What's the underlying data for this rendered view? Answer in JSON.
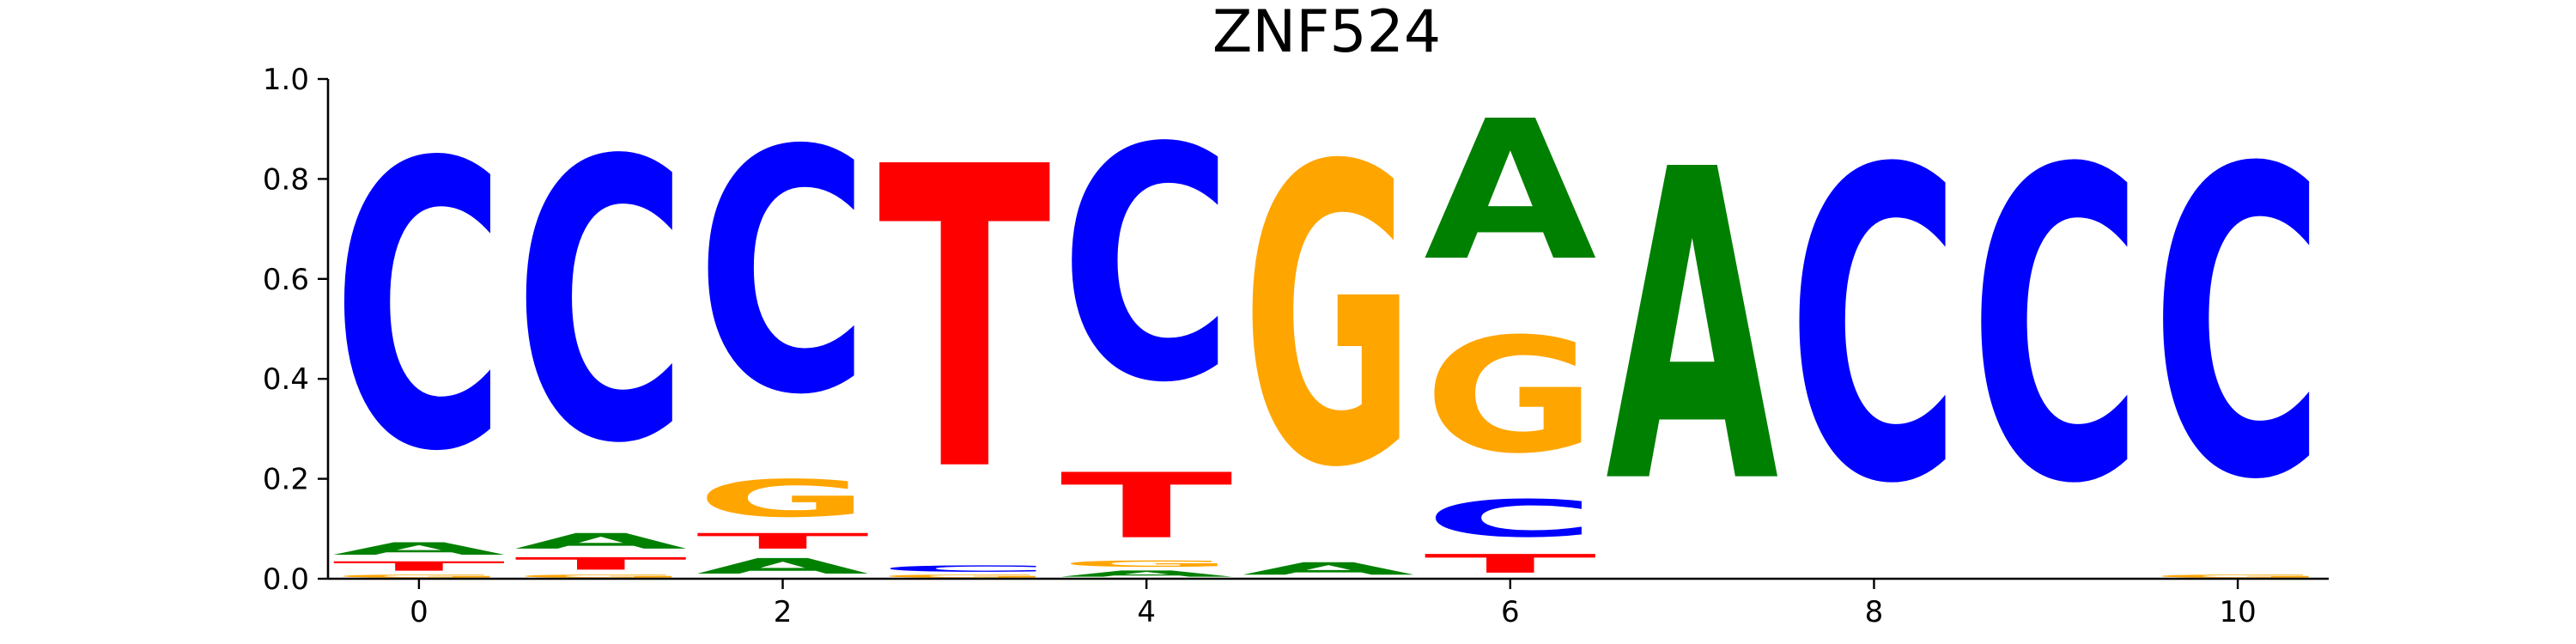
{
  "chart_data": {
    "type": "sequence-logo",
    "title": "ZNF524",
    "xlabel": "",
    "ylabel": "",
    "x_ticks": [
      0,
      2,
      4,
      6,
      8,
      10
    ],
    "y_ticks": [
      0.0,
      0.2,
      0.4,
      0.6,
      0.8,
      1.0
    ],
    "xlim": [
      -0.5,
      10.5
    ],
    "ylim": [
      0,
      1
    ],
    "grid": false,
    "legend": "none",
    "letter_colors": {
      "A": "#008000",
      "C": "#0000ff",
      "G": "#ffa500",
      "T": "#ff0000"
    },
    "positions": [
      {
        "index": 0,
        "A": 0.04,
        "C": 0.92,
        "G": 0.01,
        "T": 0.03
      },
      {
        "index": 1,
        "A": 0.05,
        "C": 0.9,
        "G": 0.01,
        "T": 0.04
      },
      {
        "index": 2,
        "A": 0.05,
        "C": 0.78,
        "G": 0.12,
        "T": 0.05
      },
      {
        "index": 3,
        "A": 0.0,
        "C": 0.02,
        "G": 0.01,
        "T": 0.97
      },
      {
        "index": 4,
        "A": 0.02,
        "C": 0.75,
        "G": 0.02,
        "T": 0.21
      },
      {
        "index": 5,
        "A": 0.04,
        "C": 0.0,
        "G": 0.96,
        "T": 0.0
      },
      {
        "index": 6,
        "A": 0.45,
        "C": 0.12,
        "G": 0.37,
        "T": 0.06
      },
      {
        "index": 7,
        "A": 1.0,
        "C": 0.0,
        "G": 0.0,
        "T": 0.0
      },
      {
        "index": 8,
        "A": 0.0,
        "C": 1.0,
        "G": 0.0,
        "T": 0.0
      },
      {
        "index": 9,
        "A": 0.0,
        "C": 1.0,
        "G": 0.0,
        "T": 0.0
      },
      {
        "index": 10,
        "A": 0.0,
        "C": 0.99,
        "G": 0.01,
        "T": 0.0
      }
    ]
  }
}
